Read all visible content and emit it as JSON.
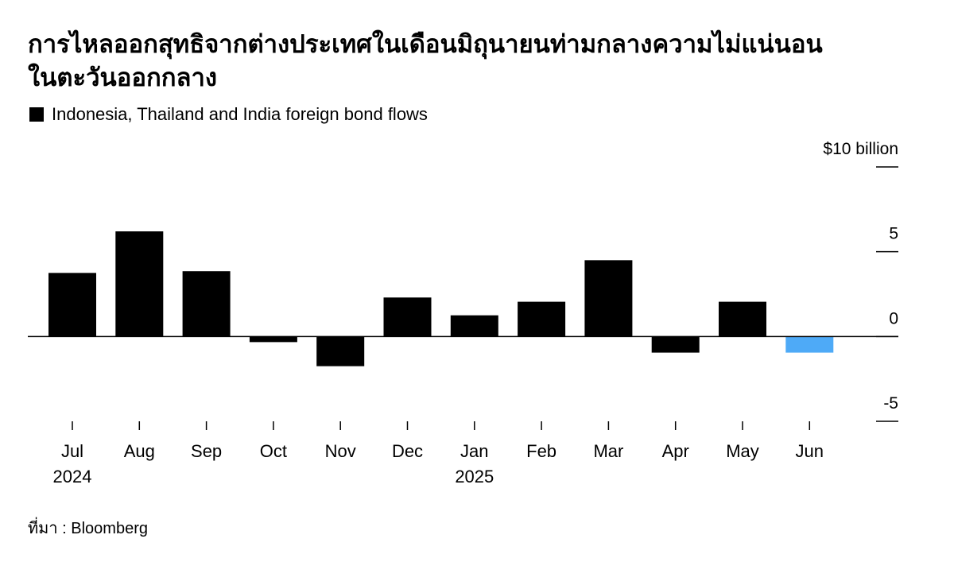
{
  "chart_data": {
    "type": "bar",
    "title": "การไหลออกสุทธิจากต่างประเทศในเดือนมิถุนายนท่ามกลางความไม่แน่นอน",
    "title_line2": "ในตะวันออกกลาง",
    "legend": "Indonesia, Thailand and India foreign bond flows",
    "legend_color": "#000000",
    "source": "ที่มา : Bloomberg",
    "categories": [
      "Jul",
      "Aug",
      "Sep",
      "Oct",
      "Nov",
      "Dec",
      "Jan",
      "Feb",
      "Mar",
      "Apr",
      "May",
      "Jun"
    ],
    "category_years": [
      "2024",
      null,
      null,
      null,
      null,
      null,
      "2025",
      null,
      null,
      null,
      null,
      null
    ],
    "values": [
      3.75,
      6.2,
      3.85,
      -0.33,
      -1.75,
      2.3,
      1.25,
      2.05,
      4.5,
      -0.95,
      2.05,
      -0.95
    ],
    "colors": [
      "#000000",
      "#000000",
      "#000000",
      "#000000",
      "#000000",
      "#000000",
      "#000000",
      "#000000",
      "#000000",
      "#000000",
      "#000000",
      "#4eaaf7"
    ],
    "ylim": [
      -5,
      10
    ],
    "yticks": [
      {
        "value": 10,
        "label": "$10 billion"
      },
      5,
      0,
      -5
    ]
  }
}
